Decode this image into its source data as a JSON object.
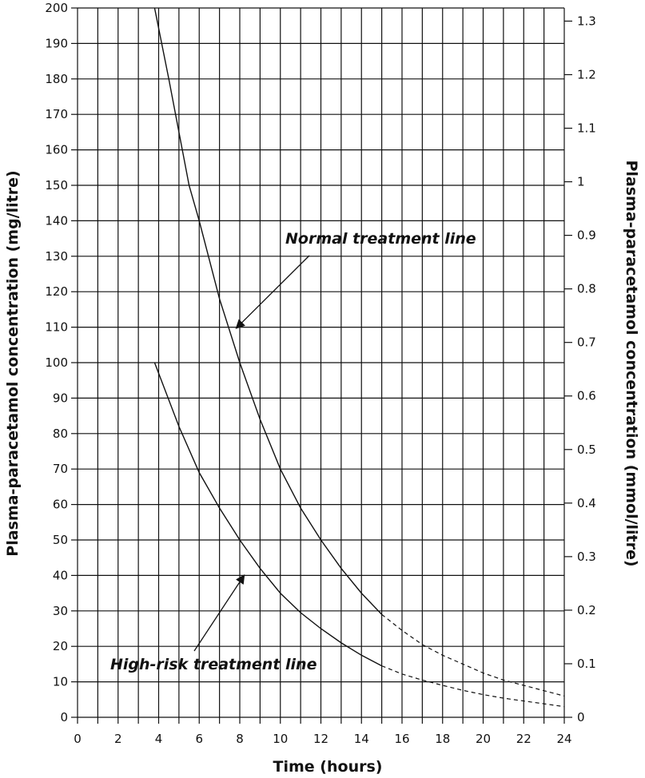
{
  "chart_data": {
    "type": "line",
    "xlabel": "Time (hours)",
    "ylabel_left": "Plasma-paracetamol concentration (mg/litre)",
    "ylabel_right": "Plasma-paracetamol concentration (mmol/litre)",
    "xlim": [
      0,
      24
    ],
    "ylim": [
      0,
      200
    ],
    "y_right_lim": [
      0,
      1.3245
    ],
    "grid": true,
    "x_ticks": [
      0,
      2,
      4,
      6,
      8,
      10,
      12,
      14,
      16,
      18,
      20,
      22,
      24
    ],
    "x_tick_labels": [
      "0",
      "2",
      "4",
      "6",
      "8",
      "10",
      "12",
      "14",
      "16",
      "18",
      "20",
      "22",
      "24"
    ],
    "y_ticks": [
      0,
      10,
      20,
      30,
      40,
      50,
      60,
      70,
      80,
      90,
      100,
      110,
      120,
      130,
      140,
      150,
      160,
      170,
      180,
      190,
      200
    ],
    "y_tick_labels": [
      "0",
      "10",
      "20",
      "30",
      "40",
      "50",
      "60",
      "70",
      "80",
      "90",
      "100",
      "110",
      "120",
      "130",
      "140",
      "150",
      "160",
      "170",
      "180",
      "190",
      "200"
    ],
    "y_right_ticks": [
      0,
      0.1,
      0.2,
      0.3,
      0.4,
      0.5,
      0.6,
      0.7,
      0.8,
      0.9,
      1,
      1.1,
      1.2,
      1.3
    ],
    "y_right_tick_labels": [
      "0",
      "0.1",
      "0.2",
      "0.3",
      "0.4",
      "0.5",
      "0.6",
      "0.7",
      "0.8",
      "0.9",
      "1",
      "1.1",
      "1.2",
      "1.3"
    ],
    "series": [
      {
        "name": "Normal treatment line",
        "solid": [
          {
            "x": 3.8,
            "y": 200
          },
          {
            "x": 4.5,
            "y": 180
          },
          {
            "x": 5.5,
            "y": 150
          },
          {
            "x": 6,
            "y": 140
          },
          {
            "x": 7,
            "y": 118
          },
          {
            "x": 8,
            "y": 100
          },
          {
            "x": 9,
            "y": 84
          },
          {
            "x": 10,
            "y": 70
          },
          {
            "x": 11,
            "y": 59
          },
          {
            "x": 12,
            "y": 50
          },
          {
            "x": 13,
            "y": 42
          },
          {
            "x": 14,
            "y": 35
          },
          {
            "x": 15,
            "y": 29
          }
        ],
        "dashed": [
          {
            "x": 15,
            "y": 29
          },
          {
            "x": 16,
            "y": 24.5
          },
          {
            "x": 17,
            "y": 20.5
          },
          {
            "x": 18,
            "y": 17.5
          },
          {
            "x": 19,
            "y": 15
          },
          {
            "x": 20,
            "y": 12.5
          },
          {
            "x": 21,
            "y": 10.5
          },
          {
            "x": 22,
            "y": 9
          },
          {
            "x": 23,
            "y": 7.5
          },
          {
            "x": 24,
            "y": 6
          }
        ]
      },
      {
        "name": "High-risk treatment line",
        "solid": [
          {
            "x": 3.8,
            "y": 100
          },
          {
            "x": 5,
            "y": 82
          },
          {
            "x": 6,
            "y": 69
          },
          {
            "x": 7,
            "y": 59
          },
          {
            "x": 8,
            "y": 50
          },
          {
            "x": 9,
            "y": 42
          },
          {
            "x": 10,
            "y": 35
          },
          {
            "x": 11,
            "y": 29.5
          },
          {
            "x": 12,
            "y": 25
          },
          {
            "x": 13,
            "y": 21
          },
          {
            "x": 14,
            "y": 17.5
          },
          {
            "x": 15,
            "y": 14.5
          }
        ],
        "dashed": [
          {
            "x": 15,
            "y": 14.5
          },
          {
            "x": 16,
            "y": 12.2
          },
          {
            "x": 17,
            "y": 10.5
          },
          {
            "x": 18,
            "y": 9
          },
          {
            "x": 19,
            "y": 7.6
          },
          {
            "x": 20,
            "y": 6.4
          },
          {
            "x": 21,
            "y": 5.4
          },
          {
            "x": 22,
            "y": 4.6
          },
          {
            "x": 23,
            "y": 3.8
          },
          {
            "x": 24,
            "y": 3
          }
        ]
      }
    ],
    "annotations": [
      {
        "text": "Normal treatment line",
        "points_to": {
          "x": 7.7,
          "y": 109
        }
      },
      {
        "text": "High-risk treatment line",
        "points_to": {
          "x": 8.3,
          "y": 41
        }
      }
    ]
  }
}
